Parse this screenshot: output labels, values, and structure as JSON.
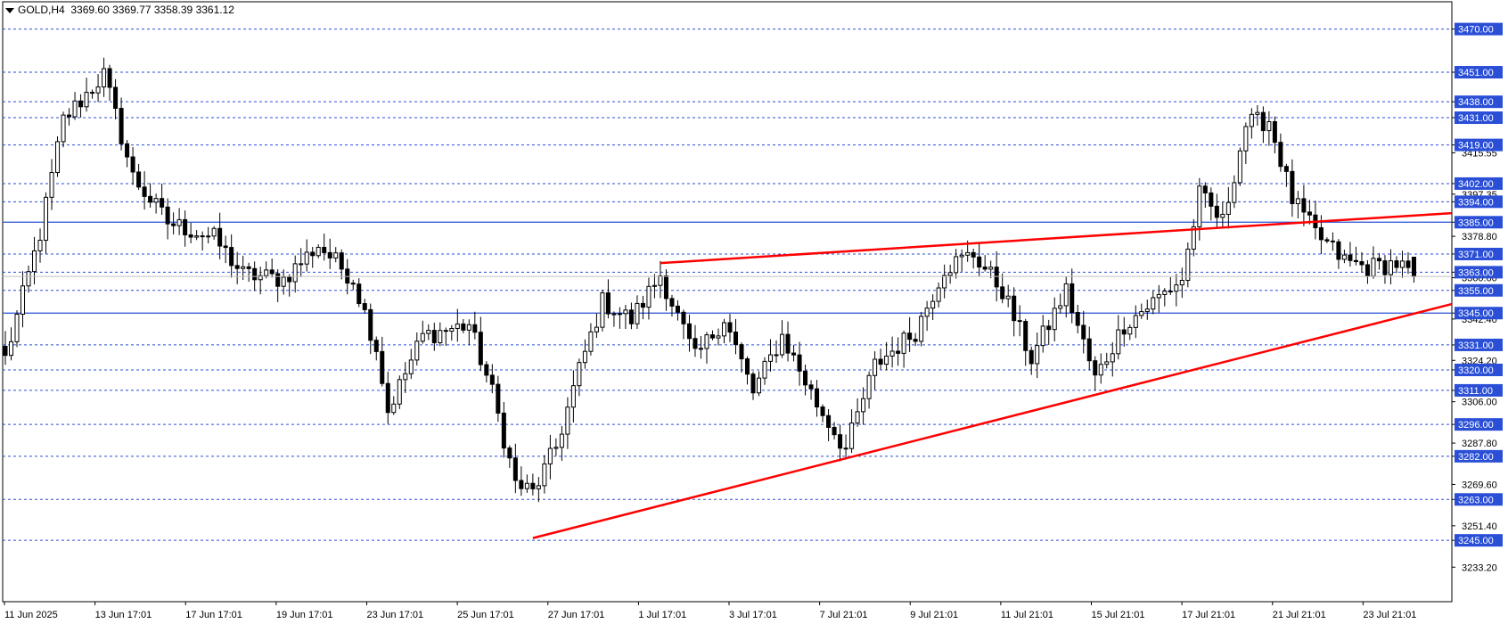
{
  "chart_data": {
    "type": "candlestick",
    "symbol": "GOLD",
    "timeframe": "H4",
    "header": {
      "open": "3369.60",
      "high": "3369.77",
      "low": "3358.39",
      "close": "3361.12"
    },
    "ylim": [
      3218,
      3482
    ],
    "y_ticks": [
      "3470.00",
      "3451.00",
      "3438.00",
      "3431.00",
      "3419.00",
      "3415.55",
      "3402.00",
      "3397.35",
      "3394.00",
      "3385.00",
      "3378.80",
      "3371.00",
      "3363.00",
      "3360.60",
      "3355.00",
      "3345.00",
      "3342.40",
      "3331.00",
      "3324.20",
      "3320.00",
      "3311.00",
      "3306.00",
      "3296.00",
      "3287.80",
      "3282.00",
      "3269.60",
      "3263.00",
      "3251.40",
      "3245.00",
      "3233.20"
    ],
    "horizontal_levels": [
      {
        "value": 3470,
        "label": "3470.00",
        "style": "dashed"
      },
      {
        "value": 3451,
        "label": "3451.00",
        "style": "dashed"
      },
      {
        "value": 3438,
        "label": "3438.00",
        "style": "dashed"
      },
      {
        "value": 3431,
        "label": "3431.00",
        "style": "dashed"
      },
      {
        "value": 3419,
        "label": "3419.00",
        "style": "dashed"
      },
      {
        "value": 3402,
        "label": "3402.00",
        "style": "dashed"
      },
      {
        "value": 3394,
        "label": "3394.00",
        "style": "dashed"
      },
      {
        "value": 3385,
        "label": "3385.00",
        "style": "solid"
      },
      {
        "value": 3371,
        "label": "3371.00",
        "style": "dashed"
      },
      {
        "value": 3363,
        "label": "3363.00",
        "style": "dashed"
      },
      {
        "value": 3355,
        "label": "3355.00",
        "style": "dashed"
      },
      {
        "value": 3345,
        "label": "3345.00",
        "style": "solid"
      },
      {
        "value": 3331,
        "label": "3331.00",
        "style": "dashed"
      },
      {
        "value": 3320,
        "label": "3320.00",
        "style": "dashed"
      },
      {
        "value": 3311,
        "label": "3311.00",
        "style": "dashed"
      },
      {
        "value": 3296,
        "label": "3296.00",
        "style": "dashed"
      },
      {
        "value": 3282,
        "label": "3282.00",
        "style": "dashed"
      },
      {
        "value": 3263,
        "label": "3263.00",
        "style": "dashed"
      },
      {
        "value": 3245,
        "label": "3245.00",
        "style": "dashed"
      }
    ],
    "current_price": 3361.12,
    "x_labels": [
      "11 Jun 2025",
      "13 Jun 17:01",
      "17 Jun 17:01",
      "19 Jun 17:01",
      "23 Jun 17:01",
      "25 Jun 17:01",
      "27 Jun 17:01",
      "1 Jul 17:01",
      "3 Jul 17:01",
      "7 Jul 21:01",
      "9 Jul 21:01",
      "11 Jul 21:01",
      "15 Jul 21:01",
      "17 Jul 21:01",
      "21 Jul 21:01",
      "23 Jul 21:01"
    ],
    "bar_count": 250,
    "trendlines": [
      {
        "from_bar": 91,
        "from_value": 3246,
        "to_bar": 250,
        "to_value": 3349,
        "color": "#ff0000"
      },
      {
        "from_bar": 113,
        "from_value": 3367,
        "to_bar": 250,
        "to_value": 3389,
        "color": "#ff0000"
      }
    ],
    "key_points": [
      {
        "bar": 0,
        "price": 3325
      },
      {
        "bar": 6,
        "price": 3380
      },
      {
        "bar": 10,
        "price": 3430
      },
      {
        "bar": 17,
        "price": 3450
      },
      {
        "bar": 22,
        "price": 3405
      },
      {
        "bar": 28,
        "price": 3385
      },
      {
        "bar": 36,
        "price": 3378
      },
      {
        "bar": 41,
        "price": 3362
      },
      {
        "bar": 48,
        "price": 3360
      },
      {
        "bar": 54,
        "price": 3375
      },
      {
        "bar": 60,
        "price": 3360
      },
      {
        "bar": 64,
        "price": 3330
      },
      {
        "bar": 66,
        "price": 3302
      },
      {
        "bar": 72,
        "price": 3335
      },
      {
        "bar": 80,
        "price": 3340
      },
      {
        "bar": 84,
        "price": 3310
      },
      {
        "bar": 88,
        "price": 3270
      },
      {
        "bar": 91,
        "price": 3266
      },
      {
        "bar": 95,
        "price": 3286
      },
      {
        "bar": 99,
        "price": 3320
      },
      {
        "bar": 103,
        "price": 3350
      },
      {
        "bar": 108,
        "price": 3342
      },
      {
        "bar": 113,
        "price": 3362
      },
      {
        "bar": 119,
        "price": 3325
      },
      {
        "bar": 124,
        "price": 3343
      },
      {
        "bar": 129,
        "price": 3310
      },
      {
        "bar": 134,
        "price": 3335
      },
      {
        "bar": 140,
        "price": 3305
      },
      {
        "bar": 145,
        "price": 3285
      },
      {
        "bar": 150,
        "price": 3322
      },
      {
        "bar": 157,
        "price": 3337
      },
      {
        "bar": 162,
        "price": 3365
      },
      {
        "bar": 167,
        "price": 3371
      },
      {
        "bar": 172,
        "price": 3355
      },
      {
        "bar": 177,
        "price": 3325
      },
      {
        "bar": 183,
        "price": 3355
      },
      {
        "bar": 188,
        "price": 3316
      },
      {
        "bar": 193,
        "price": 3340
      },
      {
        "bar": 198,
        "price": 3350
      },
      {
        "bar": 203,
        "price": 3360
      },
      {
        "bar": 206,
        "price": 3397
      },
      {
        "bar": 210,
        "price": 3385
      },
      {
        "bar": 214,
        "price": 3428
      },
      {
        "bar": 218,
        "price": 3430
      },
      {
        "bar": 222,
        "price": 3395
      },
      {
        "bar": 226,
        "price": 3380
      },
      {
        "bar": 231,
        "price": 3368
      },
      {
        "bar": 235,
        "price": 3365
      },
      {
        "bar": 240,
        "price": 3367
      },
      {
        "bar": 243,
        "price": 3361
      }
    ]
  }
}
